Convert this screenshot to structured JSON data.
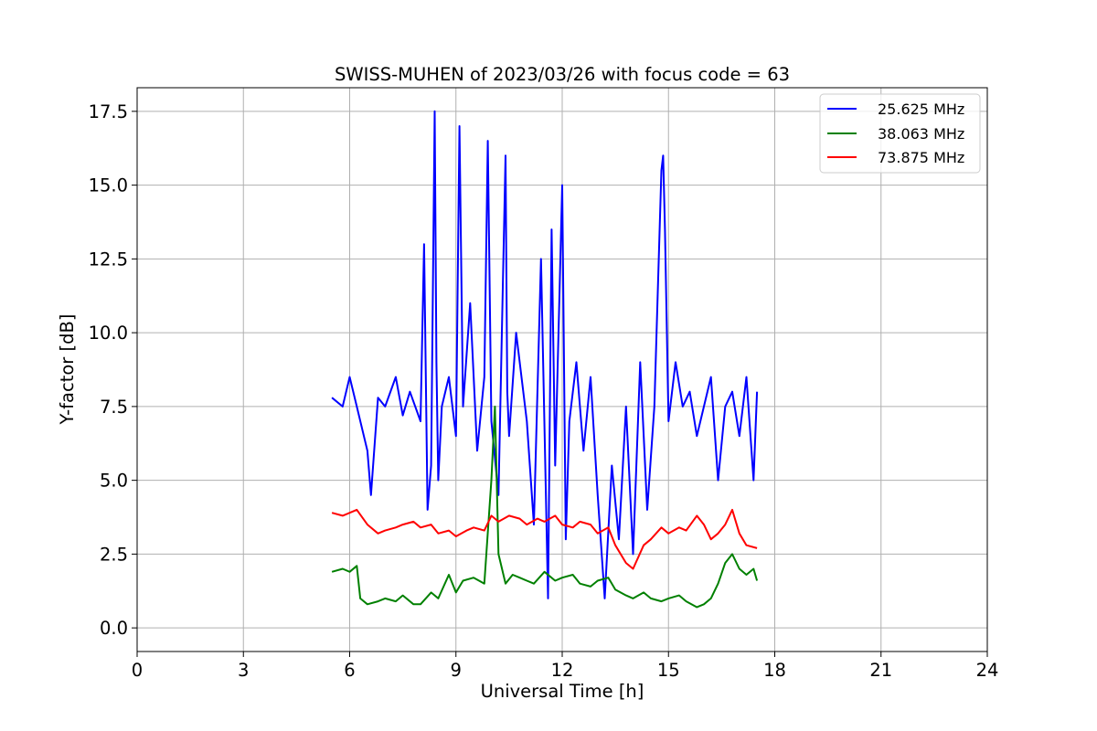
{
  "chart_data": {
    "type": "line",
    "title": "SWISS-MUHEN of 2023/03/26 with focus code = 63",
    "xlabel": "Universal Time [h]",
    "ylabel": "Y-factor [dB]",
    "xlim": [
      0,
      24
    ],
    "ylim": [
      -0.8,
      18.3
    ],
    "xticks": [
      0,
      3,
      6,
      9,
      12,
      15,
      18,
      21,
      24
    ],
    "xtick_labels": [
      "0",
      "3",
      "6",
      "9",
      "12",
      "15",
      "18",
      "21",
      "24"
    ],
    "yticks": [
      0,
      2.5,
      5,
      7.5,
      10,
      12.5,
      15,
      17.5
    ],
    "ytick_labels": [
      "0.0",
      "2.5",
      "5.0",
      "7.5",
      "10.0",
      "12.5",
      "15.0",
      "17.5"
    ],
    "grid": true,
    "legend_position": "top-right",
    "series": [
      {
        "name": "25.625 MHz",
        "color": "#0000ff",
        "x": [
          5.5,
          5.8,
          6.0,
          6.2,
          6.5,
          6.6,
          6.8,
          7.0,
          7.3,
          7.5,
          7.7,
          8.0,
          8.1,
          8.2,
          8.3,
          8.4,
          8.45,
          8.5,
          8.6,
          8.8,
          9.0,
          9.1,
          9.2,
          9.4,
          9.6,
          9.8,
          9.9,
          10.0,
          10.2,
          10.4,
          10.45,
          10.5,
          10.7,
          11.0,
          11.2,
          11.4,
          11.6,
          11.7,
          11.8,
          12.0,
          12.1,
          12.2,
          12.4,
          12.6,
          12.8,
          13.0,
          13.2,
          13.4,
          13.6,
          13.8,
          14.0,
          14.2,
          14.4,
          14.6,
          14.8,
          14.85,
          14.9,
          15.0,
          15.2,
          15.4,
          15.6,
          15.8,
          16.0,
          16.2,
          16.4,
          16.6,
          16.8,
          17.0,
          17.2,
          17.4,
          17.5
        ],
        "y": [
          7.8,
          7.5,
          8.5,
          7.5,
          6.0,
          4.5,
          7.8,
          7.5,
          8.5,
          7.2,
          8.0,
          7.0,
          13.0,
          4.0,
          5.5,
          17.5,
          9.0,
          5.0,
          7.5,
          8.5,
          6.5,
          17.0,
          7.5,
          11.0,
          6.0,
          8.5,
          16.5,
          7.0,
          4.5,
          16.0,
          8.0,
          6.5,
          10.0,
          7.0,
          3.5,
          12.5,
          1.0,
          13.5,
          5.5,
          15.0,
          3.0,
          7.0,
          9.0,
          6.0,
          8.5,
          4.5,
          1.0,
          5.5,
          3.0,
          7.5,
          2.5,
          9.0,
          4.0,
          7.5,
          15.5,
          16.0,
          13.5,
          7.0,
          9.0,
          7.5,
          8.0,
          6.5,
          7.5,
          8.5,
          5.0,
          7.5,
          8.0,
          6.5,
          8.5,
          5.0,
          8.0
        ]
      },
      {
        "name": "38.063 MHz",
        "color": "#008000",
        "x": [
          5.5,
          5.8,
          6.0,
          6.2,
          6.3,
          6.5,
          6.8,
          7.0,
          7.3,
          7.5,
          7.8,
          8.0,
          8.3,
          8.5,
          8.8,
          9.0,
          9.2,
          9.5,
          9.8,
          10.0,
          10.1,
          10.2,
          10.4,
          10.6,
          10.8,
          11.0,
          11.2,
          11.5,
          11.8,
          12.0,
          12.3,
          12.5,
          12.8,
          13.0,
          13.3,
          13.5,
          13.8,
          14.0,
          14.3,
          14.5,
          14.8,
          15.0,
          15.3,
          15.5,
          15.8,
          16.0,
          16.2,
          16.4,
          16.6,
          16.8,
          17.0,
          17.2,
          17.4,
          17.5
        ],
        "y": [
          1.9,
          2.0,
          1.9,
          2.1,
          1.0,
          0.8,
          0.9,
          1.0,
          0.9,
          1.1,
          0.8,
          0.8,
          1.2,
          1.0,
          1.8,
          1.2,
          1.6,
          1.7,
          1.5,
          5.0,
          7.5,
          2.5,
          1.5,
          1.8,
          1.7,
          1.6,
          1.5,
          1.9,
          1.6,
          1.7,
          1.8,
          1.5,
          1.4,
          1.6,
          1.7,
          1.3,
          1.1,
          1.0,
          1.2,
          1.0,
          0.9,
          1.0,
          1.1,
          0.9,
          0.7,
          0.8,
          1.0,
          1.5,
          2.2,
          2.5,
          2.0,
          1.8,
          2.0,
          1.6
        ]
      },
      {
        "name": "73.875 MHz",
        "color": "#ff0000",
        "x": [
          5.5,
          5.8,
          6.0,
          6.2,
          6.5,
          6.8,
          7.0,
          7.3,
          7.5,
          7.8,
          8.0,
          8.3,
          8.5,
          8.8,
          9.0,
          9.3,
          9.5,
          9.8,
          10.0,
          10.2,
          10.5,
          10.8,
          11.0,
          11.3,
          11.5,
          11.8,
          12.0,
          12.3,
          12.5,
          12.8,
          13.0,
          13.3,
          13.5,
          13.8,
          14.0,
          14.3,
          14.5,
          14.8,
          15.0,
          15.3,
          15.5,
          15.8,
          16.0,
          16.2,
          16.4,
          16.6,
          16.8,
          17.0,
          17.2,
          17.5
        ],
        "y": [
          3.9,
          3.8,
          3.9,
          4.0,
          3.5,
          3.2,
          3.3,
          3.4,
          3.5,
          3.6,
          3.4,
          3.5,
          3.2,
          3.3,
          3.1,
          3.3,
          3.4,
          3.3,
          3.8,
          3.6,
          3.8,
          3.7,
          3.5,
          3.7,
          3.6,
          3.8,
          3.5,
          3.4,
          3.6,
          3.5,
          3.2,
          3.4,
          2.8,
          2.2,
          2.0,
          2.8,
          3.0,
          3.4,
          3.2,
          3.4,
          3.3,
          3.8,
          3.5,
          3.0,
          3.2,
          3.5,
          4.0,
          3.2,
          2.8,
          2.7
        ]
      }
    ]
  }
}
